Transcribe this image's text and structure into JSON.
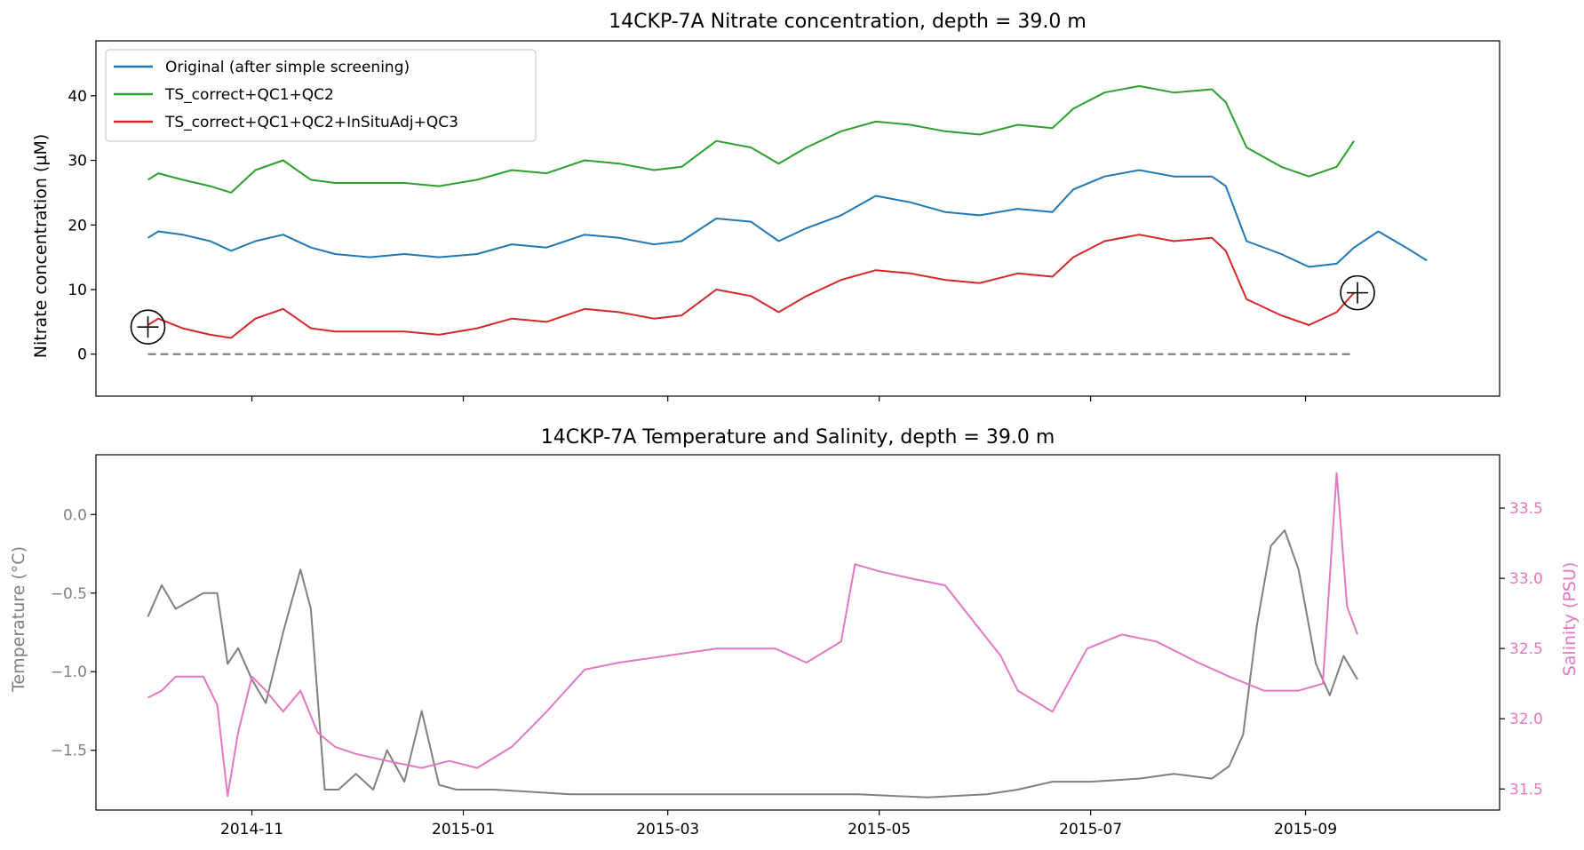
{
  "chart_data": [
    {
      "type": "line",
      "title": "14CKP-7A Nitrate concentration, depth = 39.0 m",
      "xlabel": "",
      "ylabel": "Nitrate concentration (µM)",
      "xlim": [
        "2014-09-17",
        "2015-10-27"
      ],
      "ylim": [
        -6.5,
        48.5
      ],
      "yticks": [
        0,
        10,
        20,
        30,
        40
      ],
      "grid": false,
      "legend": "top-left",
      "reference_line": {
        "value": 0,
        "x_start": "2014-10-02",
        "x_end": "2015-09-15",
        "style": "dashed",
        "color": "#808080"
      },
      "markers": [
        {
          "x": "2014-10-02",
          "y": 4.2,
          "shape": "circled-plus"
        },
        {
          "x": "2015-09-16",
          "y": 9.5,
          "shape": "circled-plus"
        }
      ],
      "series": [
        {
          "name": "Original (after simple screening)",
          "color": "#1f77b4",
          "x": [
            "2014-10-02",
            "2014-10-05",
            "2014-10-12",
            "2014-10-20",
            "2014-10-26",
            "2014-11-02",
            "2014-11-10",
            "2014-11-18",
            "2014-11-25",
            "2014-12-05",
            "2014-12-15",
            "2014-12-25",
            "2015-01-05",
            "2015-01-15",
            "2015-01-25",
            "2015-02-05",
            "2015-02-15",
            "2015-02-25",
            "2015-03-05",
            "2015-03-15",
            "2015-03-25",
            "2015-04-02",
            "2015-04-10",
            "2015-04-20",
            "2015-04-30",
            "2015-05-10",
            "2015-05-20",
            "2015-05-30",
            "2015-06-10",
            "2015-06-20",
            "2015-06-26",
            "2015-07-05",
            "2015-07-15",
            "2015-07-25",
            "2015-08-05",
            "2015-08-09",
            "2015-08-15",
            "2015-08-25",
            "2015-09-02",
            "2015-09-10",
            "2015-09-15",
            "2015-09-22",
            "2015-09-30",
            "2015-10-06"
          ],
          "values": [
            18,
            19,
            18.5,
            17.5,
            16,
            17.5,
            18.5,
            16.5,
            15.5,
            15,
            15.5,
            15,
            15.5,
            17,
            16.5,
            18.5,
            18,
            17,
            17.5,
            21,
            20.5,
            17.5,
            19.5,
            21.5,
            24.5,
            23.5,
            22,
            21.5,
            22.5,
            22,
            25.5,
            27.5,
            28.5,
            27.5,
            27.5,
            26,
            17.5,
            15.5,
            13.5,
            14,
            16.5,
            19,
            16.5,
            14.5
          ]
        },
        {
          "name": "TS_correct+QC1+QC2",
          "color": "#2ca02c",
          "x": [
            "2014-10-02",
            "2014-10-05",
            "2014-10-12",
            "2014-10-20",
            "2014-10-26",
            "2014-11-02",
            "2014-11-10",
            "2014-11-18",
            "2014-11-25",
            "2014-12-05",
            "2014-12-15",
            "2014-12-25",
            "2015-01-05",
            "2015-01-15",
            "2015-01-25",
            "2015-02-05",
            "2015-02-15",
            "2015-02-25",
            "2015-03-05",
            "2015-03-15",
            "2015-03-25",
            "2015-04-02",
            "2015-04-10",
            "2015-04-20",
            "2015-04-30",
            "2015-05-10",
            "2015-05-20",
            "2015-05-30",
            "2015-06-10",
            "2015-06-20",
            "2015-06-26",
            "2015-07-05",
            "2015-07-15",
            "2015-07-25",
            "2015-08-05",
            "2015-08-09",
            "2015-08-15",
            "2015-08-25",
            "2015-09-02",
            "2015-09-10",
            "2015-09-15"
          ],
          "values": [
            27,
            28,
            27,
            26,
            25,
            28.5,
            30,
            27,
            26.5,
            26.5,
            26.5,
            26,
            27,
            28.5,
            28,
            30,
            29.5,
            28.5,
            29,
            33,
            32,
            29.5,
            32,
            34.5,
            36,
            35.5,
            34.5,
            34,
            35.5,
            35,
            38,
            40.5,
            41.5,
            40.5,
            41,
            39,
            32,
            29,
            27.5,
            29,
            33
          ]
        },
        {
          "name": "TS_correct+QC1+QC2+InSituAdj+QC3",
          "color": "#d62728",
          "x": [
            "2014-10-02",
            "2014-10-05",
            "2014-10-12",
            "2014-10-20",
            "2014-10-26",
            "2014-11-02",
            "2014-11-10",
            "2014-11-18",
            "2014-11-25",
            "2014-12-05",
            "2014-12-15",
            "2014-12-25",
            "2015-01-05",
            "2015-01-15",
            "2015-01-25",
            "2015-02-05",
            "2015-02-15",
            "2015-02-25",
            "2015-03-05",
            "2015-03-15",
            "2015-03-25",
            "2015-04-02",
            "2015-04-10",
            "2015-04-20",
            "2015-04-30",
            "2015-05-10",
            "2015-05-20",
            "2015-05-30",
            "2015-06-10",
            "2015-06-20",
            "2015-06-26",
            "2015-07-05",
            "2015-07-15",
            "2015-07-25",
            "2015-08-05",
            "2015-08-09",
            "2015-08-15",
            "2015-08-25",
            "2015-09-02",
            "2015-09-10",
            "2015-09-15"
          ],
          "values": [
            4.5,
            5.5,
            4,
            3,
            2.5,
            5.5,
            7,
            4,
            3.5,
            3.5,
            3.5,
            3,
            4,
            5.5,
            5,
            7,
            6.5,
            5.5,
            6,
            10,
            9,
            6.5,
            9,
            11.5,
            13,
            12.5,
            11.5,
            11,
            12.5,
            12,
            15,
            17.5,
            18.5,
            17.5,
            18,
            16,
            8.5,
            6,
            4.5,
            6.5,
            9.5
          ]
        }
      ]
    },
    {
      "type": "line",
      "title": "14CKP-7A Temperature and Salinity, depth = 39.0 m",
      "xlabel": "",
      "xlim": [
        "2014-09-17",
        "2015-10-27"
      ],
      "xticks": [
        "2014-11",
        "2015-01",
        "2015-03",
        "2015-05",
        "2015-07",
        "2015-09"
      ],
      "grid": false,
      "y_left": {
        "label": "Temperature (°C)",
        "color": "#808080",
        "lim": [
          -1.88,
          0.38
        ],
        "ticks": [
          "0.0",
          "−0.5",
          "−1.0",
          "−1.5"
        ]
      },
      "y_right": {
        "label": "Salinity (PSU)",
        "color": "#e377c2",
        "lim": [
          31.35,
          33.88
        ],
        "ticks": [
          "33.5",
          "33.0",
          "32.5",
          "32.0",
          "31.5"
        ]
      },
      "series": [
        {
          "axis": "left",
          "color": "#808080",
          "x": [
            "2014-10-02",
            "2014-10-06",
            "2014-10-10",
            "2014-10-14",
            "2014-10-18",
            "2014-10-22",
            "2014-10-25",
            "2014-10-28",
            "2014-11-01",
            "2014-11-05",
            "2014-11-10",
            "2014-11-15",
            "2014-11-18",
            "2014-11-22",
            "2014-11-26",
            "2014-12-01",
            "2014-12-06",
            "2014-12-10",
            "2014-12-15",
            "2014-12-20",
            "2014-12-25",
            "2014-12-30",
            "2015-01-10",
            "2015-02-01",
            "2015-03-01",
            "2015-04-01",
            "2015-04-25",
            "2015-05-15",
            "2015-06-01",
            "2015-06-10",
            "2015-06-20",
            "2015-07-01",
            "2015-07-15",
            "2015-07-25",
            "2015-08-05",
            "2015-08-10",
            "2015-08-14",
            "2015-08-18",
            "2015-08-22",
            "2015-08-26",
            "2015-08-30",
            "2015-09-04",
            "2015-09-08",
            "2015-09-12",
            "2015-09-16"
          ],
          "values": [
            -0.65,
            -0.45,
            -0.6,
            -0.55,
            -0.5,
            -0.5,
            -0.95,
            -0.85,
            -1.05,
            -1.2,
            -0.75,
            -0.35,
            -0.6,
            -1.75,
            -1.75,
            -1.65,
            -1.75,
            -1.5,
            -1.7,
            -1.25,
            -1.72,
            -1.75,
            -1.75,
            -1.78,
            -1.78,
            -1.78,
            -1.78,
            -1.8,
            -1.78,
            -1.75,
            -1.7,
            -1.7,
            -1.68,
            -1.65,
            -1.68,
            -1.6,
            -1.4,
            -0.7,
            -0.2,
            -0.1,
            -0.35,
            -0.95,
            -1.15,
            -0.9,
            -1.05
          ]
        },
        {
          "axis": "right",
          "color": "#e377c2",
          "x": [
            "2014-10-02",
            "2014-10-06",
            "2014-10-10",
            "2014-10-14",
            "2014-10-18",
            "2014-10-22",
            "2014-10-25",
            "2014-10-28",
            "2014-11-01",
            "2014-11-05",
            "2014-11-10",
            "2014-11-15",
            "2014-11-20",
            "2014-11-25",
            "2014-12-01",
            "2014-12-10",
            "2014-12-20",
            "2014-12-28",
            "2015-01-05",
            "2015-01-15",
            "2015-01-25",
            "2015-02-05",
            "2015-02-15",
            "2015-03-01",
            "2015-03-15",
            "2015-04-01",
            "2015-04-10",
            "2015-04-20",
            "2015-04-24",
            "2015-05-01",
            "2015-05-10",
            "2015-05-20",
            "2015-05-28",
            "2015-06-05",
            "2015-06-10",
            "2015-06-20",
            "2015-06-30",
            "2015-07-10",
            "2015-07-20",
            "2015-08-01",
            "2015-08-10",
            "2015-08-20",
            "2015-08-30",
            "2015-09-06",
            "2015-09-10",
            "2015-09-13",
            "2015-09-16"
          ],
          "values": [
            32.15,
            32.2,
            32.3,
            32.3,
            32.3,
            32.1,
            31.45,
            31.9,
            32.3,
            32.2,
            32.05,
            32.2,
            31.9,
            31.8,
            31.75,
            31.7,
            31.65,
            31.7,
            31.65,
            31.8,
            32.05,
            32.35,
            32.4,
            32.45,
            32.5,
            32.5,
            32.4,
            32.55,
            33.1,
            33.05,
            33.0,
            32.95,
            32.7,
            32.45,
            32.2,
            32.05,
            32.5,
            32.6,
            32.55,
            32.4,
            32.3,
            32.2,
            32.2,
            32.25,
            33.75,
            32.8,
            32.6
          ]
        }
      ]
    }
  ]
}
